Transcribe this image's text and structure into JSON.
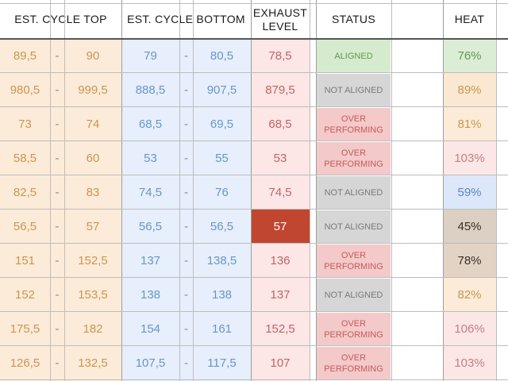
{
  "headers": {
    "cycle_top": "EST. CYCLE TOP",
    "cycle_bottom": "EST. CYCLE BOTTOM",
    "exhaust": "EXHAUST\nLEVEL",
    "status": "STATUS",
    "heat": "HEAT"
  },
  "separator": "-",
  "rows": [
    {
      "top_low": "89,5",
      "top_high": "90",
      "bot_low": "79",
      "bot_high": "80,5",
      "exhaust": "78,5",
      "status": "ALIGNED",
      "status_type": "aligned",
      "heat": "76%",
      "heat_color": "#dcedd6",
      "heat_text": "#5e9a4e",
      "exhaust_highlight": false
    },
    {
      "top_low": "980,5",
      "top_high": "999,5",
      "bot_low": "888,5",
      "bot_high": "907,5",
      "exhaust": "879,5",
      "status": "NOT ALIGNED",
      "status_type": "notaligned",
      "heat": "89%",
      "heat_color": "#fbe8d2",
      "heat_text": "#c99652",
      "exhaust_highlight": false
    },
    {
      "top_low": "73",
      "top_high": "74",
      "bot_low": "68,5",
      "bot_high": "69,5",
      "exhaust": "68,5",
      "status": "OVER\nPERFORMING",
      "status_type": "over",
      "heat": "81%",
      "heat_color": "#fcebd8",
      "heat_text": "#c99652",
      "exhaust_highlight": false
    },
    {
      "top_low": "58,5",
      "top_high": "60",
      "bot_low": "53",
      "bot_high": "55",
      "exhaust": "53",
      "status": "OVER\nPERFORMING",
      "status_type": "over",
      "heat": "103%",
      "heat_color": "#fce7e7",
      "heat_text": "#c47f7f",
      "exhaust_highlight": false
    },
    {
      "top_low": "82,5",
      "top_high": "83",
      "bot_low": "74,5",
      "bot_high": "76",
      "exhaust": "74,5",
      "status": "NOT ALIGNED",
      "status_type": "notaligned",
      "heat": "59%",
      "heat_color": "#dce8f9",
      "heat_text": "#5b86c2",
      "exhaust_highlight": false
    },
    {
      "top_low": "56,5",
      "top_high": "57",
      "bot_low": "56,5",
      "bot_high": "56,5",
      "exhaust": "57",
      "status": "NOT ALIGNED",
      "status_type": "notaligned",
      "heat": "45%",
      "heat_color": "#dccfc3",
      "heat_text": "#3a3027",
      "exhaust_highlight": true
    },
    {
      "top_low": "151",
      "top_high": "152,5",
      "bot_low": "137",
      "bot_high": "138,5",
      "exhaust": "136",
      "status": "OVER\nPERFORMING",
      "status_type": "over",
      "heat": "78%",
      "heat_color": "#e2d3c5",
      "heat_text": "#3a3027",
      "exhaust_highlight": false
    },
    {
      "top_low": "152",
      "top_high": "153,5",
      "bot_low": "138",
      "bot_high": "138",
      "exhaust": "137",
      "status": "NOT ALIGNED",
      "status_type": "notaligned",
      "heat": "82%",
      "heat_color": "#fcebd8",
      "heat_text": "#c99652",
      "exhaust_highlight": false
    },
    {
      "top_low": "175,5",
      "top_high": "182",
      "bot_low": "154",
      "bot_high": "161",
      "exhaust": "152,5",
      "status": "OVER\nPERFORMING",
      "status_type": "over",
      "heat": "106%",
      "heat_color": "#fce7e7",
      "heat_text": "#c47f7f",
      "exhaust_highlight": false
    },
    {
      "top_low": "126,5",
      "top_high": "132,5",
      "bot_low": "107,5",
      "bot_high": "117,5",
      "exhaust": "107",
      "status": "OVER\nPERFORMING",
      "status_type": "over",
      "heat": "103%",
      "heat_color": "#fce7e7",
      "heat_text": "#c47f7f",
      "exhaust_highlight": false
    }
  ],
  "colors": {
    "top_bg": "#fcebd8",
    "top_text": "#c99652",
    "bottom_bg": "#e6effb",
    "bottom_text": "#6a95c8",
    "exhaust_bg": "#fce6e6",
    "exhaust_text": "#c26464",
    "exhaust_highlight_bg": "#c1462f",
    "exhaust_highlight_text": "#ffffff",
    "aligned_bg": "#d6ebcd",
    "aligned_text": "#5e9a4e",
    "notaligned_bg": "#d6d6d6",
    "notaligned_text": "#7a7a7a",
    "over_bg": "#f3c9c9",
    "over_text": "#c75b5b"
  }
}
